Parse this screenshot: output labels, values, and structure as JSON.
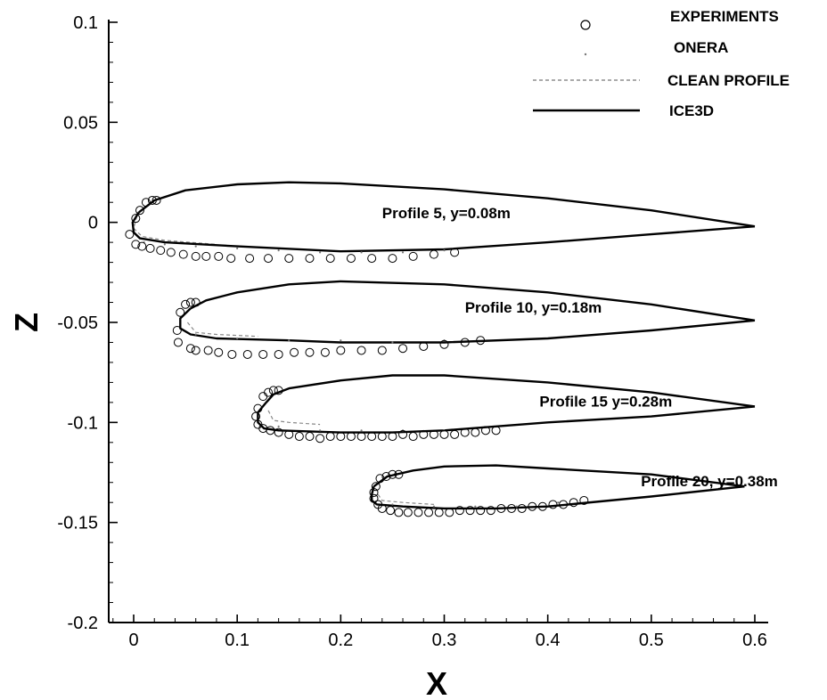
{
  "chart_data": {
    "type": "line",
    "xlabel": "X",
    "ylabel": "Z",
    "xlim": [
      -0.025,
      0.6
    ],
    "ylim": [
      -0.2,
      0.1
    ],
    "xticks": [
      {
        "value": 0,
        "label": "0"
      },
      {
        "value": 0.1,
        "label": "0.1"
      },
      {
        "value": 0.2,
        "label": "0.2"
      },
      {
        "value": 0.3,
        "label": "0.3"
      },
      {
        "value": 0.4,
        "label": "0.4"
      },
      {
        "value": 0.5,
        "label": "0.5"
      },
      {
        "value": 0.6,
        "label": "0.6"
      }
    ],
    "yticks": [
      {
        "value": 0.1,
        "label": "0.1"
      },
      {
        "value": 0.05,
        "label": "0.05"
      },
      {
        "value": 0,
        "label": "0"
      },
      {
        "value": -0.05,
        "label": "-0.05"
      },
      {
        "value": -0.1,
        "label": "-0.1"
      },
      {
        "value": -0.15,
        "label": "-0.15"
      },
      {
        "value": -0.2,
        "label": "-0.2"
      }
    ],
    "grid": false,
    "legend_position": "top-right",
    "legend": [
      {
        "label": "EXPERIMENTS",
        "marker": "open-circle"
      },
      {
        "label": "ONERA",
        "marker": "dot"
      },
      {
        "label": "CLEAN PROFILE",
        "marker": "dashed-line"
      },
      {
        "label": "ICE3D",
        "marker": "solid-line"
      }
    ],
    "profiles": [
      {
        "label": "Profile 5, y=0.08m",
        "label_at": [
          0.24,
          0.002
        ],
        "ice3d_upper": [
          [
            0.005,
            0.005
          ],
          [
            0.02,
            0.011
          ],
          [
            0.05,
            0.016
          ],
          [
            0.1,
            0.019
          ],
          [
            0.15,
            0.02
          ],
          [
            0.2,
            0.0195
          ],
          [
            0.3,
            0.0165
          ],
          [
            0.4,
            0.012
          ],
          [
            0.5,
            0.006
          ],
          [
            0.6,
            -0.002
          ]
        ],
        "ice3d_lower": [
          [
            0.005,
            0.005
          ],
          [
            -0.001,
            0.0
          ],
          [
            0.0,
            -0.005
          ],
          [
            0.006,
            -0.008
          ],
          [
            0.03,
            -0.01
          ],
          [
            0.1,
            -0.012
          ],
          [
            0.2,
            -0.0145
          ],
          [
            0.3,
            -0.0135
          ],
          [
            0.4,
            -0.01
          ],
          [
            0.5,
            -0.006
          ],
          [
            0.6,
            -0.002
          ]
        ],
        "clean_lower": [
          [
            0.003,
            0.003
          ],
          [
            0.0,
            -0.003
          ],
          [
            0.008,
            -0.007
          ],
          [
            0.03,
            -0.009
          ],
          [
            0.08,
            -0.011
          ]
        ],
        "experiments": [
          [
            0.012,
            0.01
          ],
          [
            0.018,
            0.011
          ],
          [
            0.022,
            0.011
          ],
          [
            0.006,
            0.006
          ],
          [
            0.002,
            0.002
          ],
          [
            -0.004,
            -0.006
          ],
          [
            0.002,
            -0.011
          ],
          [
            0.008,
            -0.012
          ],
          [
            0.016,
            -0.013
          ],
          [
            0.026,
            -0.014
          ],
          [
            0.036,
            -0.015
          ],
          [
            0.048,
            -0.016
          ],
          [
            0.06,
            -0.017
          ],
          [
            0.07,
            -0.017
          ],
          [
            0.082,
            -0.017
          ],
          [
            0.094,
            -0.018
          ],
          [
            0.112,
            -0.018
          ],
          [
            0.13,
            -0.018
          ],
          [
            0.15,
            -0.018
          ],
          [
            0.17,
            -0.018
          ],
          [
            0.19,
            -0.018
          ],
          [
            0.21,
            -0.018
          ],
          [
            0.23,
            -0.018
          ],
          [
            0.25,
            -0.018
          ],
          [
            0.27,
            -0.017
          ],
          [
            0.29,
            -0.016
          ],
          [
            0.31,
            -0.015
          ]
        ],
        "onera": [
          [
            0.01,
            -0.01
          ],
          [
            0.03,
            -0.011
          ],
          [
            0.06,
            -0.012
          ],
          [
            0.1,
            -0.013
          ],
          [
            0.14,
            -0.014
          ],
          [
            0.18,
            -0.015
          ],
          [
            0.22,
            -0.015
          ],
          [
            0.26,
            -0.015
          ],
          [
            0.3,
            -0.014
          ]
        ]
      },
      {
        "label": "Profile 10, y=0.18m",
        "label_at": [
          0.32,
          -0.045
        ],
        "ice3d_upper": [
          [
            0.055,
            -0.043
          ],
          [
            0.07,
            -0.039
          ],
          [
            0.1,
            -0.035
          ],
          [
            0.15,
            -0.031
          ],
          [
            0.2,
            -0.0295
          ],
          [
            0.3,
            -0.031
          ],
          [
            0.4,
            -0.035
          ],
          [
            0.5,
            -0.041
          ],
          [
            0.6,
            -0.049
          ]
        ],
        "ice3d_lower": [
          [
            0.055,
            -0.043
          ],
          [
            0.045,
            -0.048
          ],
          [
            0.045,
            -0.053
          ],
          [
            0.055,
            -0.056
          ],
          [
            0.08,
            -0.058
          ],
          [
            0.15,
            -0.059
          ],
          [
            0.2,
            -0.06
          ],
          [
            0.3,
            -0.06
          ],
          [
            0.4,
            -0.058
          ],
          [
            0.5,
            -0.054
          ],
          [
            0.6,
            -0.049
          ]
        ],
        "clean_lower": [
          [
            0.052,
            -0.05
          ],
          [
            0.06,
            -0.055
          ],
          [
            0.08,
            -0.056
          ],
          [
            0.12,
            -0.057
          ]
        ],
        "experiments": [
          [
            0.05,
            -0.041
          ],
          [
            0.055,
            -0.04
          ],
          [
            0.06,
            -0.04
          ],
          [
            0.045,
            -0.045
          ],
          [
            0.042,
            -0.054
          ],
          [
            0.043,
            -0.06
          ],
          [
            0.055,
            -0.063
          ],
          [
            0.06,
            -0.064
          ],
          [
            0.072,
            -0.064
          ],
          [
            0.082,
            -0.065
          ],
          [
            0.095,
            -0.066
          ],
          [
            0.11,
            -0.066
          ],
          [
            0.125,
            -0.066
          ],
          [
            0.14,
            -0.066
          ],
          [
            0.155,
            -0.065
          ],
          [
            0.17,
            -0.065
          ],
          [
            0.185,
            -0.065
          ],
          [
            0.2,
            -0.064
          ],
          [
            0.22,
            -0.064
          ],
          [
            0.24,
            -0.064
          ],
          [
            0.26,
            -0.063
          ],
          [
            0.28,
            -0.062
          ],
          [
            0.3,
            -0.061
          ],
          [
            0.32,
            -0.06
          ],
          [
            0.335,
            -0.059
          ]
        ],
        "onera": [
          [
            0.06,
            -0.056
          ],
          [
            0.1,
            -0.058
          ],
          [
            0.15,
            -0.059
          ],
          [
            0.2,
            -0.059
          ],
          [
            0.25,
            -0.06
          ],
          [
            0.3,
            -0.059
          ]
        ]
      },
      {
        "label": "Profile 15 y=0.28m",
        "label_at": [
          0.392,
          -0.092
        ],
        "ice3d_upper": [
          [
            0.128,
            -0.09
          ],
          [
            0.135,
            -0.086
          ],
          [
            0.15,
            -0.083
          ],
          [
            0.2,
            -0.079
          ],
          [
            0.25,
            -0.0765
          ],
          [
            0.3,
            -0.0765
          ],
          [
            0.4,
            -0.08
          ],
          [
            0.5,
            -0.085
          ],
          [
            0.6,
            -0.092
          ]
        ],
        "ice3d_lower": [
          [
            0.128,
            -0.09
          ],
          [
            0.12,
            -0.095
          ],
          [
            0.12,
            -0.1
          ],
          [
            0.126,
            -0.103
          ],
          [
            0.14,
            -0.104
          ],
          [
            0.2,
            -0.105
          ],
          [
            0.25,
            -0.105
          ],
          [
            0.3,
            -0.104
          ],
          [
            0.35,
            -0.102
          ],
          [
            0.4,
            -0.1
          ],
          [
            0.5,
            -0.097
          ],
          [
            0.6,
            -0.092
          ]
        ],
        "clean_lower": [
          [
            0.13,
            -0.094
          ],
          [
            0.135,
            -0.099
          ],
          [
            0.15,
            -0.1
          ],
          [
            0.18,
            -0.101
          ]
        ],
        "experiments": [
          [
            0.125,
            -0.087
          ],
          [
            0.13,
            -0.085
          ],
          [
            0.135,
            -0.084
          ],
          [
            0.14,
            -0.084
          ],
          [
            0.12,
            -0.093
          ],
          [
            0.118,
            -0.097
          ],
          [
            0.12,
            -0.101
          ],
          [
            0.125,
            -0.103
          ],
          [
            0.132,
            -0.104
          ],
          [
            0.14,
            -0.105
          ],
          [
            0.15,
            -0.106
          ],
          [
            0.16,
            -0.107
          ],
          [
            0.17,
            -0.107
          ],
          [
            0.18,
            -0.108
          ],
          [
            0.19,
            -0.107
          ],
          [
            0.2,
            -0.107
          ],
          [
            0.21,
            -0.107
          ],
          [
            0.22,
            -0.107
          ],
          [
            0.23,
            -0.107
          ],
          [
            0.24,
            -0.107
          ],
          [
            0.25,
            -0.107
          ],
          [
            0.26,
            -0.106
          ],
          [
            0.27,
            -0.107
          ],
          [
            0.28,
            -0.106
          ],
          [
            0.29,
            -0.106
          ],
          [
            0.3,
            -0.106
          ],
          [
            0.31,
            -0.106
          ],
          [
            0.32,
            -0.105
          ],
          [
            0.33,
            -0.105
          ],
          [
            0.34,
            -0.104
          ],
          [
            0.35,
            -0.104
          ]
        ],
        "onera": [
          [
            0.14,
            -0.102
          ],
          [
            0.18,
            -0.104
          ],
          [
            0.22,
            -0.104
          ],
          [
            0.26,
            -0.104
          ],
          [
            0.3,
            -0.104
          ]
        ]
      },
      {
        "label": "Profile 20, y=0.38m",
        "label_at": [
          0.49,
          -0.132
        ],
        "ice3d_upper": [
          [
            0.232,
            -0.132
          ],
          [
            0.245,
            -0.127
          ],
          [
            0.27,
            -0.124
          ],
          [
            0.3,
            -0.122
          ],
          [
            0.35,
            -0.1215
          ],
          [
            0.4,
            -0.123
          ],
          [
            0.5,
            -0.126
          ],
          [
            0.59,
            -0.132
          ]
        ],
        "ice3d_lower": [
          [
            0.232,
            -0.132
          ],
          [
            0.23,
            -0.136
          ],
          [
            0.23,
            -0.139
          ],
          [
            0.235,
            -0.141
          ],
          [
            0.26,
            -0.142
          ],
          [
            0.3,
            -0.143
          ],
          [
            0.35,
            -0.143
          ],
          [
            0.4,
            -0.142
          ],
          [
            0.5,
            -0.137
          ],
          [
            0.59,
            -0.132
          ]
        ],
        "clean_lower": [
          [
            0.236,
            -0.136
          ],
          [
            0.24,
            -0.139
          ],
          [
            0.26,
            -0.14
          ],
          [
            0.29,
            -0.141
          ]
        ],
        "experiments": [
          [
            0.238,
            -0.128
          ],
          [
            0.244,
            -0.127
          ],
          [
            0.25,
            -0.126
          ],
          [
            0.256,
            -0.126
          ],
          [
            0.234,
            -0.132
          ],
          [
            0.232,
            -0.135
          ],
          [
            0.232,
            -0.138
          ],
          [
            0.236,
            -0.141
          ],
          [
            0.24,
            -0.143
          ],
          [
            0.248,
            -0.144
          ],
          [
            0.256,
            -0.145
          ],
          [
            0.265,
            -0.145
          ],
          [
            0.275,
            -0.145
          ],
          [
            0.285,
            -0.145
          ],
          [
            0.295,
            -0.145
          ],
          [
            0.305,
            -0.145
          ],
          [
            0.315,
            -0.144
          ],
          [
            0.325,
            -0.144
          ],
          [
            0.335,
            -0.144
          ],
          [
            0.345,
            -0.144
          ],
          [
            0.355,
            -0.143
          ],
          [
            0.365,
            -0.143
          ],
          [
            0.375,
            -0.143
          ],
          [
            0.385,
            -0.142
          ],
          [
            0.395,
            -0.142
          ],
          [
            0.405,
            -0.141
          ],
          [
            0.415,
            -0.141
          ],
          [
            0.425,
            -0.14
          ],
          [
            0.435,
            -0.139
          ]
        ],
        "onera": [
          [
            0.25,
            -0.141
          ],
          [
            0.29,
            -0.142
          ],
          [
            0.33,
            -0.142
          ],
          [
            0.37,
            -0.142
          ],
          [
            0.41,
            -0.14
          ]
        ]
      }
    ]
  }
}
